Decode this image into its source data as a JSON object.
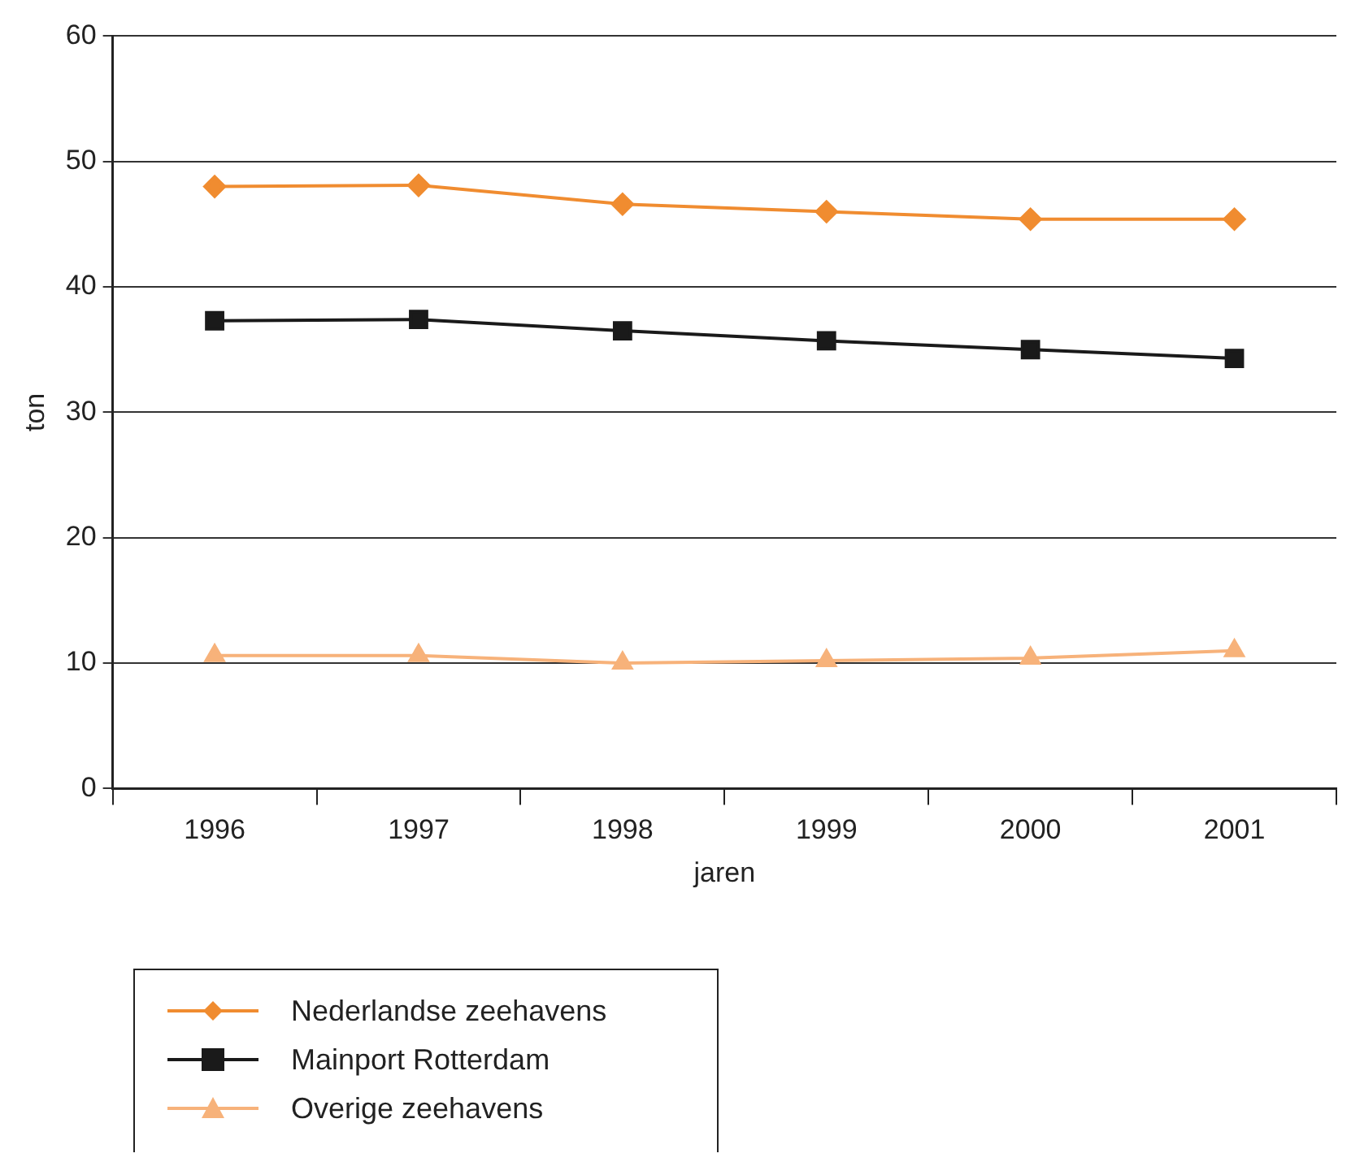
{
  "chart_data": {
    "type": "line",
    "xlabel": "jaren",
    "ylabel": "ton",
    "categories": [
      "1996",
      "1997",
      "1998",
      "1999",
      "2000",
      "2001"
    ],
    "series": [
      {
        "name": "Nederlandse zeehavens",
        "color": "#f08c30",
        "marker": "diamond",
        "values": [
          48.0,
          48.1,
          46.6,
          46.0,
          45.4,
          45.4
        ]
      },
      {
        "name": "Mainport Rotterdam",
        "color": "#1a1a1a",
        "marker": "square",
        "values": [
          37.3,
          37.4,
          36.5,
          35.7,
          35.0,
          34.3
        ]
      },
      {
        "name": "Overige zeehavens",
        "color": "#f7b27a",
        "marker": "triangle",
        "values": [
          10.6,
          10.6,
          10.0,
          10.2,
          10.4,
          11.0
        ]
      }
    ],
    "ylim": [
      0,
      60
    ],
    "yticks": [
      0,
      10,
      20,
      30,
      40,
      50,
      60
    ],
    "grid": "y",
    "legend": "bottom left"
  }
}
